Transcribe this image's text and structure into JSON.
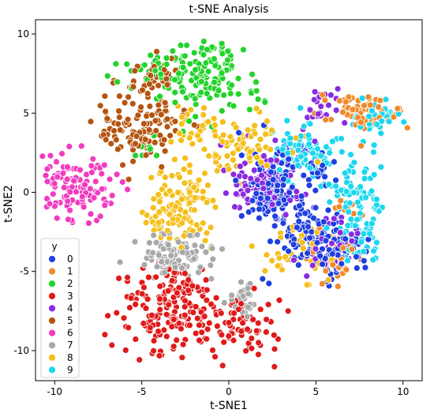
{
  "chart_data": {
    "type": "scatter",
    "title": "t-SNE Analysis",
    "xlabel": "t-SNE1",
    "ylabel": "t-SNE2",
    "xlim": [
      -11.1,
      11.1
    ],
    "ylim": [
      -11.9,
      10.9
    ],
    "xticks": [
      -10,
      -5,
      0,
      5,
      10
    ],
    "yticks": [
      10,
      5,
      0,
      -5,
      -10
    ],
    "grid": false,
    "legend": {
      "title": "y",
      "position": "lower-left"
    },
    "series": [
      {
        "name": "0",
        "color": "#1f3fe0",
        "clusters": [
          [
            2.5,
            0.3,
            1.1,
            1.4,
            150
          ],
          [
            4.7,
            -2.5,
            1.2,
            1.0,
            90
          ],
          [
            6.3,
            -3.9,
            1.1,
            0.9,
            60
          ],
          [
            4.9,
            1.6,
            0.7,
            0.6,
            25
          ]
        ]
      },
      {
        "name": "1",
        "color": "#f08a2a",
        "clusters": [
          [
            7.9,
            5.0,
            1.6,
            0.6,
            80
          ],
          [
            6.2,
            -4.2,
            0.9,
            1.0,
            35
          ],
          [
            6.8,
            -1.2,
            0.5,
            0.5,
            10
          ]
        ]
      },
      {
        "name": "2",
        "color": "#22d42a",
        "clusters": [
          [
            -1.2,
            7.4,
            1.3,
            1.6,
            110
          ],
          [
            -3.6,
            7.6,
            1.6,
            1.0,
            50
          ],
          [
            -4.5,
            2.7,
            0.5,
            0.5,
            8
          ],
          [
            1.8,
            6.0,
            0.3,
            0.4,
            6
          ]
        ]
      },
      {
        "name": "3",
        "color": "#e01a1a",
        "clusters": [
          [
            -3.6,
            -7.6,
            1.7,
            1.5,
            150
          ],
          [
            0.9,
            -8.5,
            1.3,
            1.1,
            70
          ],
          [
            -2.7,
            -5.6,
            1.2,
            0.6,
            30
          ]
        ]
      },
      {
        "name": "4",
        "color": "#8a2be2",
        "clusters": [
          [
            1.9,
            0.5,
            1.4,
            1.2,
            95
          ],
          [
            5.2,
            5.1,
            0.8,
            0.8,
            25
          ],
          [
            5.7,
            -3.2,
            0.9,
            1.1,
            45
          ]
        ]
      },
      {
        "name": "5",
        "color": "#b5540f",
        "clusters": [
          [
            -5.0,
            4.3,
            1.4,
            1.4,
            130
          ],
          [
            -4.2,
            7.3,
            0.7,
            0.8,
            30
          ]
        ]
      },
      {
        "name": "6",
        "color": "#f03cc0",
        "clusters": [
          [
            -8.8,
            0.5,
            1.2,
            1.3,
            120
          ]
        ]
      },
      {
        "name": "7",
        "color": "#a8a8a8",
        "clusters": [
          [
            -3.2,
            -4.0,
            1.4,
            0.8,
            100
          ],
          [
            0.8,
            -6.8,
            0.6,
            0.6,
            30
          ]
        ]
      },
      {
        "name": "8",
        "color": "#f5bf1a",
        "clusters": [
          [
            -2.5,
            -0.8,
            1.2,
            1.6,
            110
          ],
          [
            1.3,
            3.0,
            1.6,
            1.0,
            80
          ],
          [
            4.0,
            -4.0,
            1.2,
            1.0,
            40
          ],
          [
            -2.1,
            4.3,
            0.9,
            0.8,
            25
          ],
          [
            -4.0,
            -1.0,
            0.5,
            1.0,
            15
          ]
        ]
      },
      {
        "name": "9",
        "color": "#1ad7ef",
        "clusters": [
          [
            4.5,
            2.5,
            1.0,
            1.0,
            80
          ],
          [
            7.4,
            0.0,
            0.9,
            1.4,
            75
          ],
          [
            7.3,
            -2.9,
            0.7,
            0.8,
            45
          ],
          [
            8.4,
            4.8,
            0.9,
            0.6,
            40
          ]
        ]
      }
    ]
  }
}
